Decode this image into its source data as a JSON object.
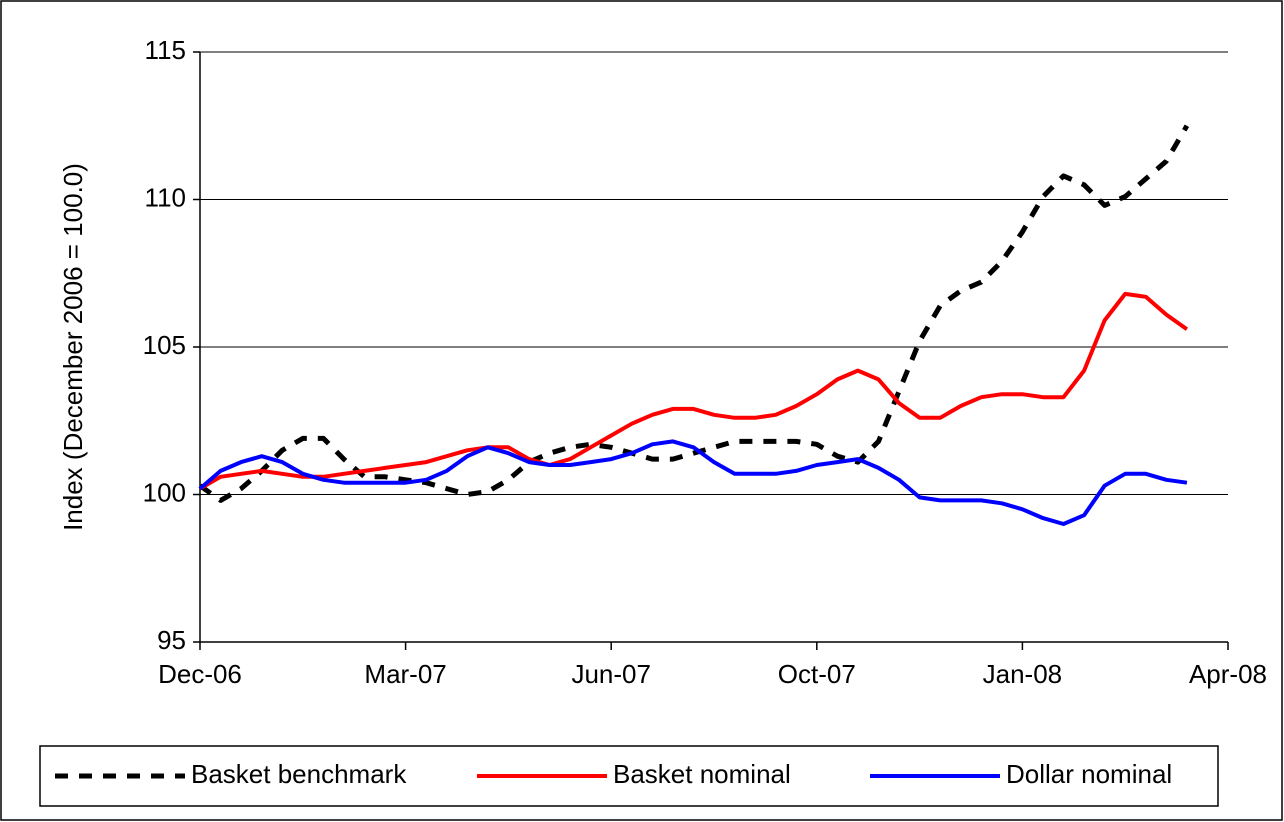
{
  "chart_data": {
    "type": "line",
    "ylabel": "Index (December 2006 = 100.0)",
    "categories": [
      "Dec-06",
      null,
      null,
      null,
      null,
      null,
      null,
      null,
      null,
      null,
      "Mar-07",
      null,
      null,
      null,
      null,
      null,
      null,
      null,
      null,
      null,
      "Jun-07",
      null,
      null,
      null,
      null,
      null,
      null,
      null,
      null,
      null,
      "Oct-07",
      null,
      null,
      null,
      null,
      null,
      null,
      null,
      null,
      null,
      "Jan-08",
      null,
      null,
      null,
      null,
      null,
      null,
      null,
      null,
      null,
      "Apr-08"
    ],
    "ylim": [
      95,
      115
    ],
    "yticks": [
      95,
      100,
      105,
      110,
      115
    ],
    "grid": true,
    "legend": "bottom",
    "series": [
      {
        "name": "Basket benchmark",
        "color": "#000000",
        "dash": true,
        "values": [
          100.3,
          99.8,
          100.2,
          100.8,
          101.5,
          101.9,
          101.9,
          101.2,
          100.6,
          100.6,
          100.5,
          100.4,
          100.2,
          100.0,
          100.1,
          100.5,
          101.1,
          101.4,
          101.6,
          101.7,
          101.6,
          101.4,
          101.2,
          101.2,
          101.4,
          101.6,
          101.8,
          101.8,
          101.8,
          101.8,
          101.7,
          101.3,
          101.1,
          101.8,
          103.5,
          105.2,
          106.4,
          106.9,
          107.2,
          107.9,
          108.9,
          110.1,
          110.8,
          110.5,
          109.8,
          110.1,
          110.7,
          111.3,
          112.5,
          null,
          null
        ]
      },
      {
        "name": "Basket nominal",
        "color": "#ff0000",
        "values": [
          100.2,
          100.6,
          100.7,
          100.8,
          100.7,
          100.6,
          100.6,
          100.7,
          100.8,
          100.9,
          101.0,
          101.1,
          101.3,
          101.5,
          101.6,
          101.6,
          101.2,
          101.0,
          101.2,
          101.6,
          102.0,
          102.4,
          102.7,
          102.9,
          102.9,
          102.7,
          102.6,
          102.6,
          102.7,
          103.0,
          103.4,
          103.9,
          104.2,
          103.9,
          103.1,
          102.6,
          102.6,
          103.0,
          103.3,
          103.4,
          103.4,
          103.3,
          103.3,
          104.2,
          105.9,
          106.8,
          106.7,
          106.1,
          105.6,
          null,
          null
        ]
      },
      {
        "name": "Dollar nominal",
        "color": "#0000ff",
        "values": [
          100.2,
          100.8,
          101.1,
          101.3,
          101.1,
          100.7,
          100.5,
          100.4,
          100.4,
          100.4,
          100.4,
          100.5,
          100.8,
          101.3,
          101.6,
          101.4,
          101.1,
          101.0,
          101.0,
          101.1,
          101.2,
          101.4,
          101.7,
          101.8,
          101.6,
          101.1,
          100.7,
          100.7,
          100.7,
          100.8,
          101.0,
          101.1,
          101.2,
          100.9,
          100.5,
          99.9,
          99.8,
          99.8,
          99.8,
          99.7,
          99.5,
          99.2,
          99.0,
          99.3,
          100.3,
          100.7,
          100.7,
          100.5,
          100.4,
          null,
          null
        ]
      }
    ]
  }
}
